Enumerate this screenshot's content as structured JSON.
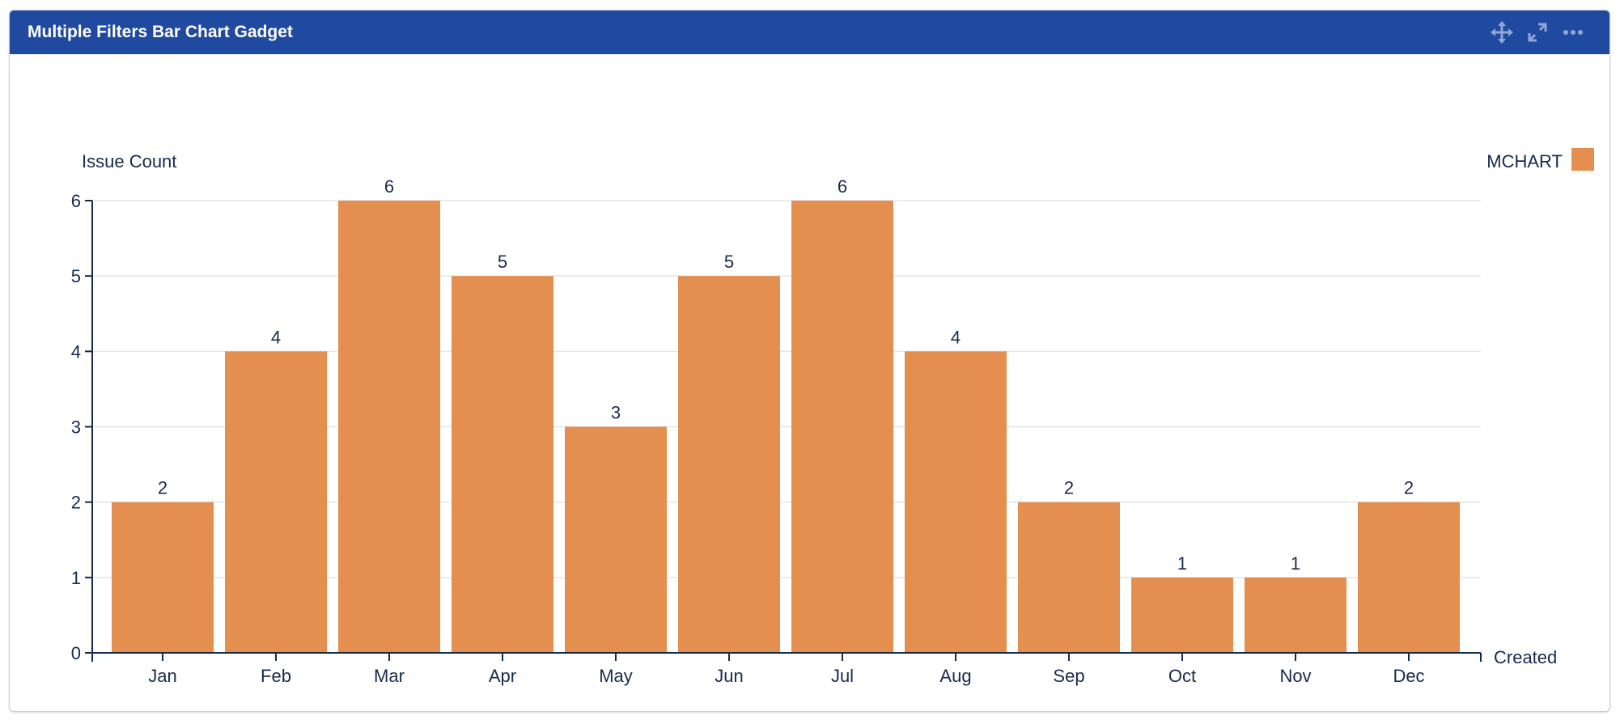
{
  "header": {
    "title": "Multiple Filters Bar Chart Gadget",
    "icons": [
      "move-icon",
      "expand-icon",
      "more-icon"
    ]
  },
  "colors": {
    "header": "#2049a0",
    "bar": "#e48f4f",
    "text": "#172b4d",
    "grid": "#e4e6ec"
  },
  "chart_data": {
    "type": "bar",
    "title": "",
    "ylabel": "Issue Count",
    "xlabel": "Created",
    "categories": [
      "Jan",
      "Feb",
      "Mar",
      "Apr",
      "May",
      "Jun",
      "Jul",
      "Aug",
      "Sep",
      "Oct",
      "Nov",
      "Dec"
    ],
    "series": [
      {
        "name": "MCHART",
        "values": [
          2,
          4,
          6,
          5,
          3,
          5,
          6,
          4,
          2,
          1,
          1,
          2
        ]
      }
    ],
    "ylim": [
      0,
      6
    ],
    "yticks": [
      0,
      1,
      2,
      3,
      4,
      5,
      6
    ],
    "grid": true,
    "legend": "top-right",
    "data_labels": true
  }
}
